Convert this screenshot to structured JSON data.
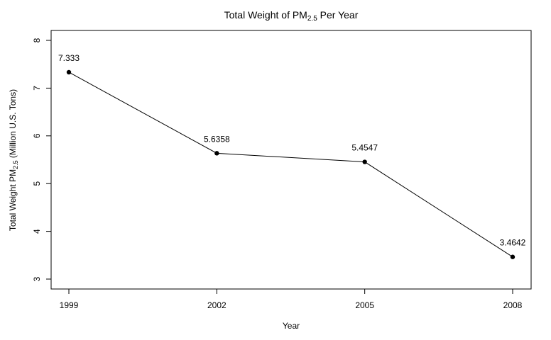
{
  "chart_data": {
    "type": "line",
    "title": {
      "prefix": "Total Weight of PM",
      "subscript": "2.5",
      "suffix": " Per Year"
    },
    "xlabel": "Year",
    "ylabel": {
      "prefix": "Total Weight PM",
      "subscript": "2.5",
      "suffix": " (Million U.S. Tons)"
    },
    "x": [
      1999,
      2002,
      2005,
      2008
    ],
    "x_ticks": [
      "1999",
      "2002",
      "2005",
      "2008"
    ],
    "series": [
      {
        "values": [
          7.333,
          5.6358,
          5.4547,
          3.4642
        ],
        "color": "#000000"
      }
    ],
    "data_labels": [
      "7.333",
      "5.6358",
      "5.4547",
      "3.4642"
    ],
    "y_ticks": [
      3,
      4,
      5,
      6,
      7,
      8
    ],
    "xlim": [
      1999,
      2008
    ],
    "ylim": [
      3,
      8
    ],
    "grid": false,
    "legend": "none"
  }
}
